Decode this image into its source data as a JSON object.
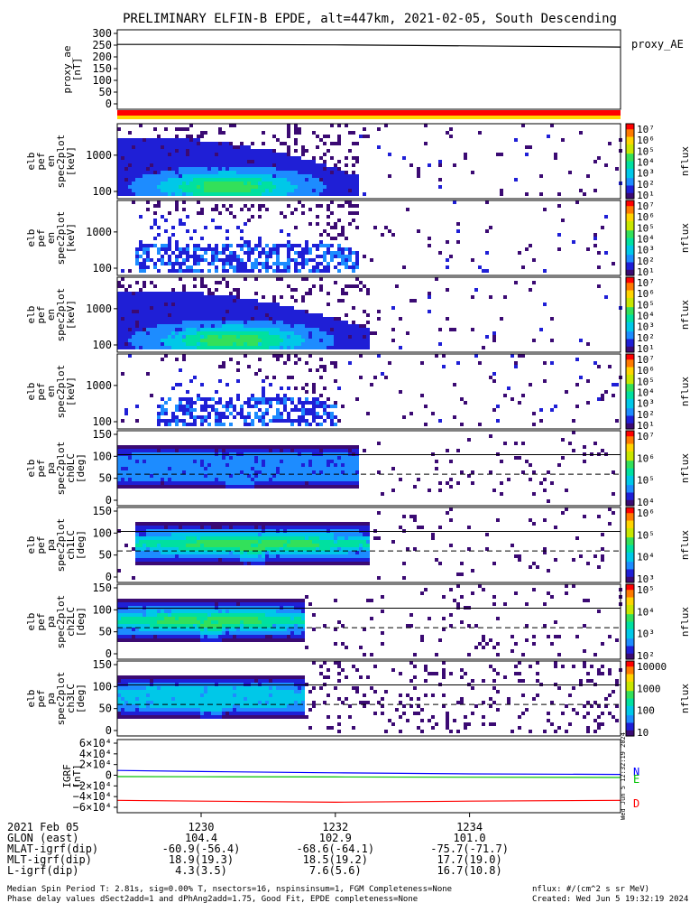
{
  "title": "PRELIMINARY ELFIN-B EPDE, alt=447km, 2021-02-05, South Descending",
  "colors": {
    "ae_line": "#000000",
    "status_bar_top": "#ff0000",
    "status_bar_bottom": "#ffd700",
    "igrf_n": "#0000ff",
    "igrf_e": "#00c000",
    "igrf_d": "#ff0000",
    "background": "#ffffff"
  },
  "colormap": [
    "#ffffff",
    "#3b0a73",
    "#1f1fd6",
    "#1d8cff",
    "#00c8e8",
    "#00e0a0",
    "#33e05a",
    "#c8e600",
    "#ffd400",
    "#ff7a00",
    "#ff0000"
  ],
  "panels": [
    {
      "id": "ae",
      "ylabel": [
        "proxy_ae",
        "[nT]"
      ],
      "right_label": "proxy_AE",
      "yticks": [
        "300",
        "250",
        "200",
        "150",
        "100",
        "50",
        "0"
      ]
    },
    {
      "id": "en0",
      "ylabel": [
        "elb",
        "pef",
        "en",
        "spec2plot",
        "[keV]"
      ],
      "yticks": [
        "1000",
        "100"
      ],
      "cbar_label": "nflux",
      "cbar_ticks": [
        "10⁷",
        "10⁶",
        "10⁵",
        "10⁴",
        "10³",
        "10²",
        "10¹"
      ]
    },
    {
      "id": "en1",
      "ylabel": [
        "elb",
        "pef",
        "en",
        "spec2plot",
        "[keV]"
      ],
      "yticks": [
        "1000",
        "100"
      ],
      "cbar_label": "nflux",
      "cbar_ticks": [
        "10⁷",
        "10⁶",
        "10⁵",
        "10⁴",
        "10³",
        "10²",
        "10¹"
      ]
    },
    {
      "id": "en2",
      "ylabel": [
        "elb",
        "pef",
        "en",
        "spec2plot",
        "[keV]"
      ],
      "yticks": [
        "1000",
        "100"
      ],
      "cbar_label": "nflux",
      "cbar_ticks": [
        "10⁷",
        "10⁶",
        "10⁵",
        "10⁴",
        "10³",
        "10²",
        "10¹"
      ]
    },
    {
      "id": "en3",
      "ylabel": [
        "elb",
        "pef",
        "en",
        "spec2plot",
        "[keV]"
      ],
      "yticks": [
        "1000",
        "100"
      ],
      "cbar_label": "nflux",
      "cbar_ticks": [
        "10⁷",
        "10⁶",
        "10⁵",
        "10⁴",
        "10³",
        "10²",
        "10¹"
      ]
    },
    {
      "id": "pa0",
      "ylabel": [
        "elb",
        "pef",
        "pa",
        "spec2plot",
        "ch0LC",
        "[deg]"
      ],
      "yticks": [
        "150",
        "100",
        "50",
        "0"
      ],
      "cbar_label": "nflux",
      "cbar_ticks": [
        "10⁷",
        "10⁶",
        "10⁵",
        "10⁴"
      ]
    },
    {
      "id": "pa1",
      "ylabel": [
        "elb",
        "pef",
        "pa",
        "spec2plot",
        "ch1LC",
        "[deg]"
      ],
      "yticks": [
        "150",
        "100",
        "50",
        "0"
      ],
      "cbar_label": "nflux",
      "cbar_ticks": [
        "10⁶",
        "10⁵",
        "10⁴",
        "10³"
      ]
    },
    {
      "id": "pa2",
      "ylabel": [
        "elb",
        "pef",
        "pa",
        "spec2plot",
        "ch2LC",
        "[deg]"
      ],
      "yticks": [
        "150",
        "100",
        "50",
        "0"
      ],
      "cbar_label": "nflux",
      "cbar_ticks": [
        "10⁵",
        "10⁴",
        "10³",
        "10²"
      ]
    },
    {
      "id": "pa3",
      "ylabel": [
        "elb",
        "pef",
        "pa",
        "spec2plot",
        "ch3LC",
        "[deg]"
      ],
      "yticks": [
        "150",
        "100",
        "50",
        "0"
      ],
      "cbar_label": "nflux",
      "cbar_ticks": [
        "10000",
        "1000",
        "100",
        "10"
      ]
    },
    {
      "id": "igrf",
      "ylabel": [
        "IGRF",
        "[nT]"
      ],
      "yticks": [
        "6×10⁴",
        "4×10⁴",
        "2×10⁴",
        "0",
        "−2×10⁴",
        "−4×10⁴",
        "−6×10⁴"
      ],
      "legend": [
        "N",
        "E",
        "D"
      ],
      "side_text": "Wed Jun  5 12:32:19 2024"
    }
  ],
  "xaxis": {
    "rows": [
      {
        "label": "2021 Feb 05",
        "values": [
          "1230",
          "1232",
          "1234"
        ]
      },
      {
        "label": "GLON (east)",
        "values": [
          "104.4",
          "102.9",
          "101.0"
        ]
      },
      {
        "label": "MLAT-igrf(dip)",
        "values": [
          "-60.9(-56.4)",
          "-68.6(-64.1)",
          "-75.7(-71.7)"
        ]
      },
      {
        "label": "MLT-igrf(dip)",
        "values": [
          "18.9(19.3)",
          "18.5(19.2)",
          "17.7(19.0)"
        ]
      },
      {
        "label": "L-igrf(dip)",
        "values": [
          "4.3(3.5)",
          "7.6(5.6)",
          "16.7(10.8)"
        ]
      }
    ]
  },
  "footer": {
    "line1_left": "Median Spin Period T: 2.81s, sig=0.00% T, nsectors=16, nspinsinsum=1, FGM Completeness=None",
    "line2_left": "Phase delay values dSect2add=1 and dPhAng2add=1.75, Good Fit, EPDE completeness=None",
    "line1_right": "nflux: #/(cm^2 s sr MeV)",
    "line2_right": "Created: Wed Jun  5 19:32:19 2024"
  },
  "chart_data": {
    "type": "heatmap",
    "title": "PRELIMINARY ELFIN-B EPDE, alt=447km, 2021-02-05, South Descending",
    "time_ticks": [
      "1230",
      "1232",
      "1234"
    ],
    "time_range": [
      "12:28:45",
      "12:36:15"
    ],
    "proxy_ae": {
      "type": "line",
      "ylim": [
        0,
        300
      ],
      "x": [
        "12:28:45",
        "12:30:00",
        "12:32:00",
        "12:34:00",
        "12:36:15"
      ],
      "y": [
        253,
        253,
        251,
        247,
        242
      ]
    },
    "energy_spectrograms": [
      {
        "name": "en (1)",
        "ylim_keV": [
          60,
          7000
        ],
        "log_y": true,
        "cbar_range": [
          10.0,
          10000000.0
        ],
        "peak_nflux": 100000.0,
        "active_time": [
          "12:28:45",
          "12:32:20"
        ]
      },
      {
        "name": "en (2)",
        "ylim_keV": [
          60,
          7000
        ],
        "log_y": true,
        "cbar_range": [
          10.0,
          10000000.0
        ],
        "peak_nflux": 1000.0,
        "active_time": [
          "12:29:00",
          "12:32:20"
        ]
      },
      {
        "name": "en (3)",
        "ylim_keV": [
          60,
          7000
        ],
        "log_y": true,
        "cbar_range": [
          10.0,
          10000000.0
        ],
        "peak_nflux": 100000.0,
        "active_time": [
          "12:28:45",
          "12:32:30"
        ]
      },
      {
        "name": "en (4)",
        "ylim_keV": [
          60,
          7000
        ],
        "log_y": true,
        "cbar_range": [
          10.0,
          10000000.0
        ],
        "peak_nflux": 1000.0,
        "active_time": [
          "12:29:20",
          "12:32:00"
        ]
      }
    ],
    "pitch_angle_spectrograms": [
      {
        "name": "ch0LC",
        "ylim_deg": [
          0,
          180
        ],
        "cbar_range": [
          1000.0,
          10000000.0
        ],
        "active_time": [
          "12:28:45",
          "12:32:20"
        ]
      },
      {
        "name": "ch1LC",
        "ylim_deg": [
          0,
          180
        ],
        "cbar_range": [
          1000.0,
          1000000.0
        ],
        "active_time": [
          "12:29:00",
          "12:32:30"
        ]
      },
      {
        "name": "ch2LC",
        "ylim_deg": [
          0,
          180
        ],
        "cbar_range": [
          100.0,
          100000.0
        ],
        "active_time": [
          "12:28:45",
          "12:31:30"
        ]
      },
      {
        "name": "ch3LC",
        "ylim_deg": [
          0,
          180
        ],
        "cbar_range": [
          10,
          10000
        ],
        "active_time": [
          "12:28:45",
          "12:31:30"
        ]
      }
    ],
    "igrf": {
      "type": "line",
      "ylim": [
        -60000,
        60000
      ],
      "series": [
        {
          "name": "N",
          "x": [
            "12:28:45",
            "12:30:00",
            "12:32:00",
            "12:34:00",
            "12:36:15"
          ],
          "y": [
            9000,
            7000,
            4500,
            2500,
            1500
          ]
        },
        {
          "name": "E",
          "x": [
            "12:28:45",
            "12:30:00",
            "12:32:00",
            "12:34:00",
            "12:36:15"
          ],
          "y": [
            -2500,
            -2800,
            -3200,
            -3800,
            -4200
          ]
        },
        {
          "name": "D",
          "x": [
            "12:28:45",
            "12:30:00",
            "12:32:00",
            "12:34:00",
            "12:36:15"
          ],
          "y": [
            -47000,
            -48500,
            -50500,
            -48500,
            -47000
          ]
        }
      ]
    }
  }
}
